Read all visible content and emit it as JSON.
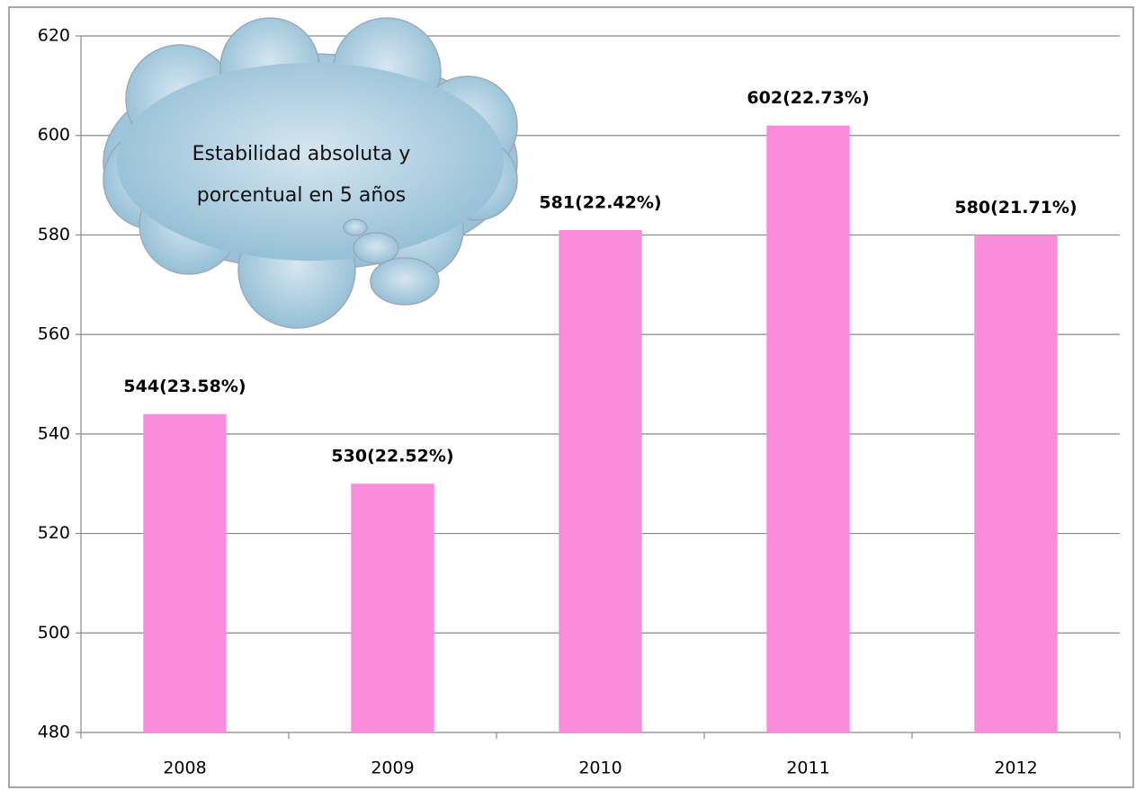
{
  "chart_data": {
    "type": "bar",
    "categories": [
      "2008",
      "2009",
      "2010",
      "2011",
      "2012"
    ],
    "values": [
      544,
      530,
      581,
      602,
      580
    ],
    "value_labels": [
      "544(23.58%)",
      "530(22.52%)",
      "581(22.42%)",
      "602(22.73%)",
      "580(21.71%)"
    ],
    "color": "#f98cdb",
    "ylim": [
      480,
      620
    ],
    "yticks": [
      480,
      500,
      520,
      540,
      560,
      580,
      600,
      620
    ],
    "grid": true,
    "annotation": [
      "Estabilidad absoluta y",
      "porcentual en 5 años"
    ]
  }
}
